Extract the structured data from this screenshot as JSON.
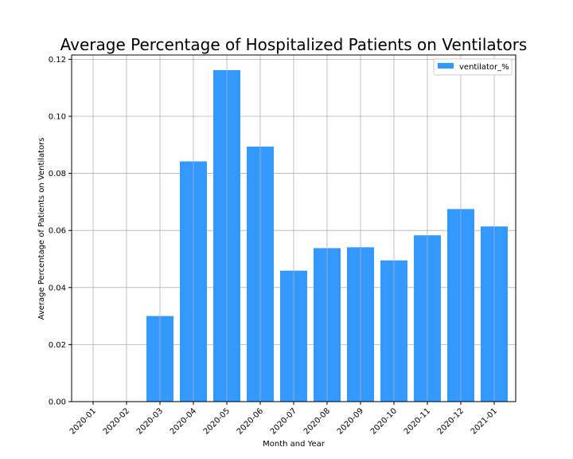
{
  "chart_data": {
    "type": "bar",
    "title": "Average Percentage of Hospitalized Patients on Ventilators",
    "xlabel": "Month and Year",
    "ylabel": "Average Percentage of Patients on Ventilators",
    "categories": [
      "2020-01",
      "2020-02",
      "2020-03",
      "2020-04",
      "2020-05",
      "2020-06",
      "2020-07",
      "2020-08",
      "2020-09",
      "2020-10",
      "2020-11",
      "2020-12",
      "2021-01"
    ],
    "series": [
      {
        "name": "ventilator_%",
        "values": [
          0,
          0,
          0.03,
          0.0842,
          0.1162,
          0.0894,
          0.0459,
          0.0538,
          0.0541,
          0.0495,
          0.0583,
          0.0675,
          0.0614
        ]
      }
    ],
    "ylim": [
      0,
      0.1215
    ],
    "yticks": [
      "0.00",
      "0.02",
      "0.04",
      "0.06",
      "0.08",
      "0.10",
      "0.12"
    ],
    "ytick_values": [
      0,
      0.02,
      0.04,
      0.06,
      0.08,
      0.1,
      0.12
    ],
    "grid": true,
    "legend_position": "top-right",
    "colors": {
      "bar": "#3399ff",
      "grid": "#b0b0b0",
      "axis": "#000000"
    }
  }
}
